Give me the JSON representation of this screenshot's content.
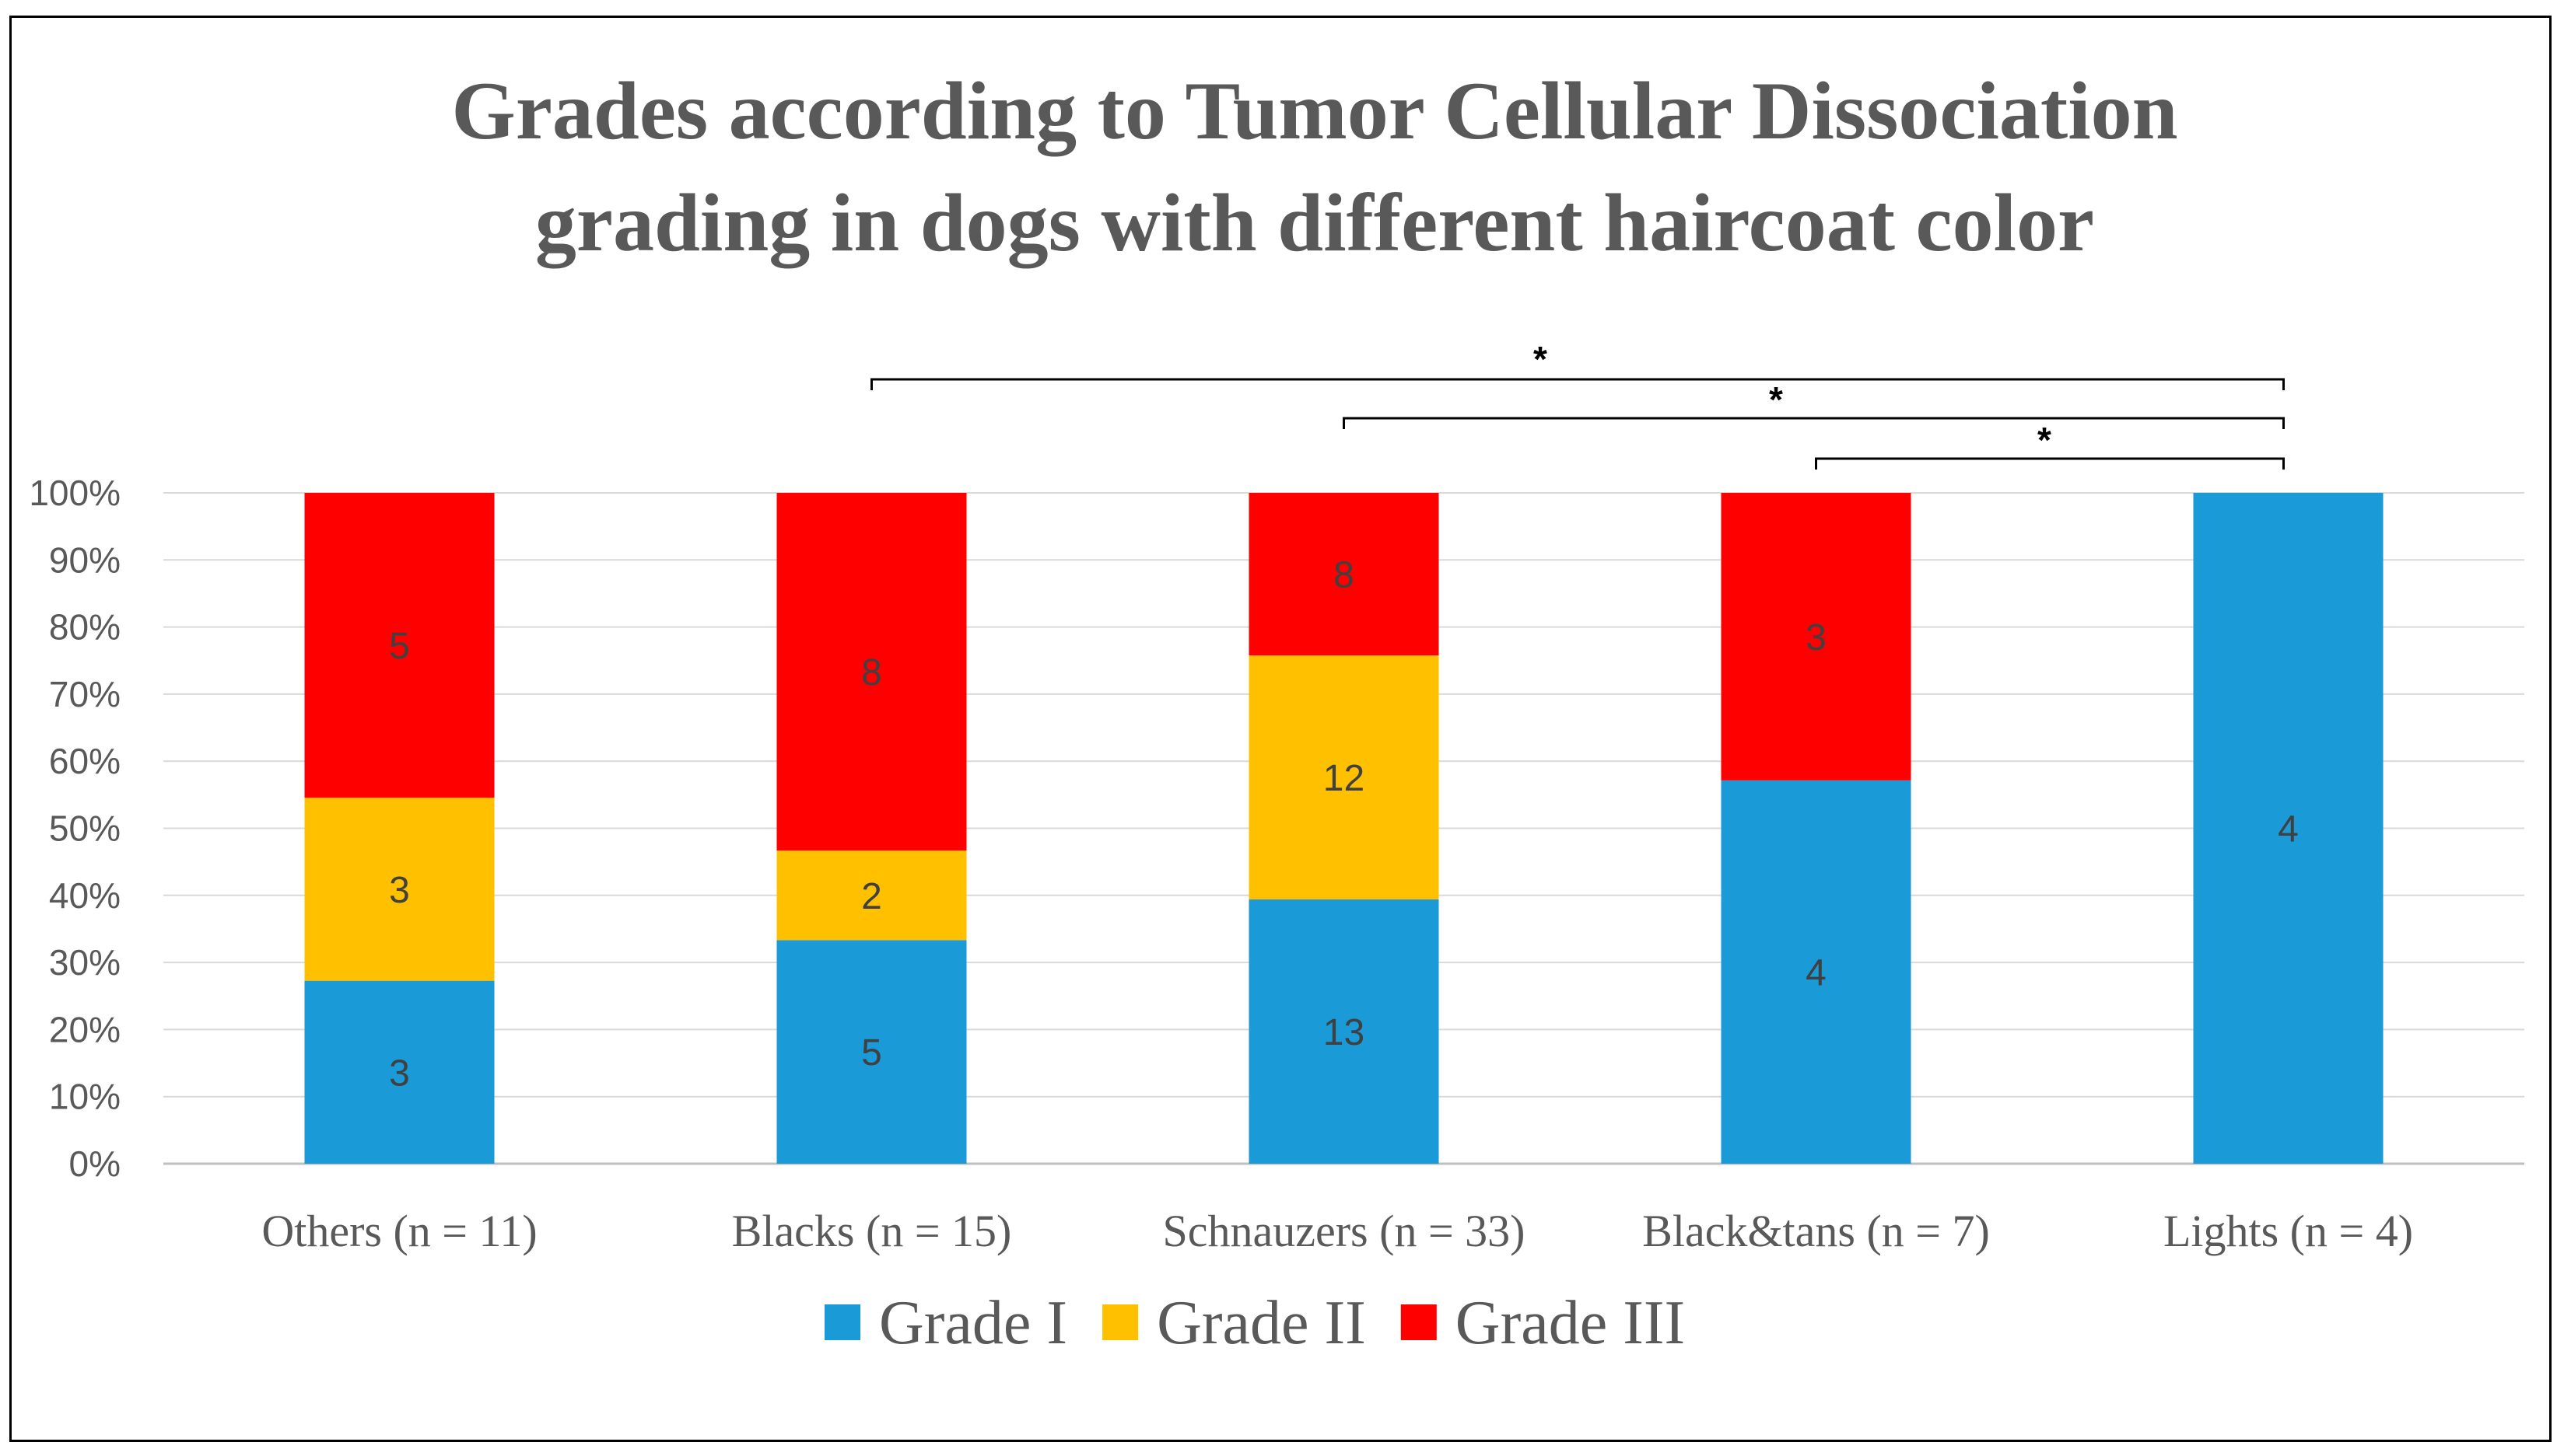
{
  "chart_data": {
    "type": "bar",
    "stacked": "percent",
    "title_lines": [
      "Grades according to Tumor Cellular Dissociation",
      "grading in dogs with different haircoat color"
    ],
    "categories": [
      "Others (n = 11)",
      "Blacks (n = 15)",
      "Schnauzers (n = 33)",
      "Black&tans (n = 7)",
      "Lights (n = 4)"
    ],
    "series": [
      {
        "name": "Grade I",
        "color": "#1a9ad6",
        "values": [
          3,
          5,
          13,
          4,
          4
        ]
      },
      {
        "name": "Grade II",
        "color": "#ffc000",
        "values": [
          3,
          2,
          12,
          0,
          0
        ]
      },
      {
        "name": "Grade III",
        "color": "#ff0000",
        "values": [
          5,
          8,
          8,
          3,
          0
        ]
      }
    ],
    "ylim": [
      0,
      100
    ],
    "yticks": [
      "0%",
      "10%",
      "20%",
      "30%",
      "40%",
      "50%",
      "60%",
      "70%",
      "80%",
      "90%",
      "100%"
    ],
    "grid": true,
    "legend_position": "bottom",
    "significance": [
      {
        "from": "Blacks (n = 15)",
        "to": "Lights (n = 4)",
        "label": "*"
      },
      {
        "from": "Schnauzers (n = 33)",
        "to": "Lights (n = 4)",
        "label": "*"
      },
      {
        "from": "Black&tans (n = 7)",
        "to": "Lights (n = 4)",
        "label": "*"
      }
    ]
  }
}
